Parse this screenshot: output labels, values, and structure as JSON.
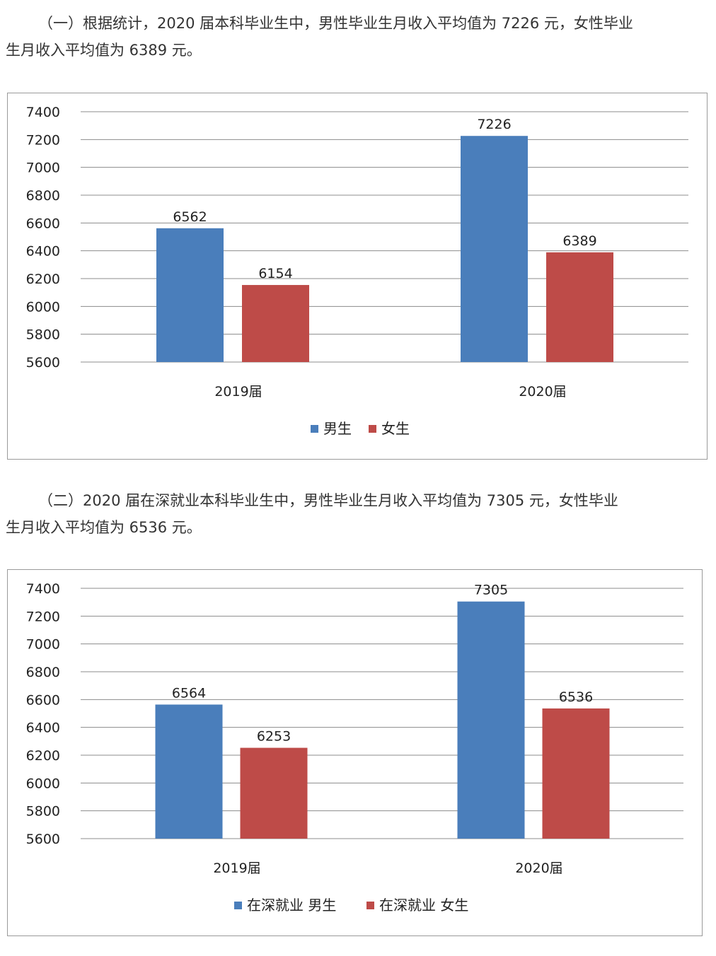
{
  "paragraphs": [
    {
      "line1": "（一）根据统计，2020 届本科毕业生中，男性毕业生月收入平均值为 7226 元，女性毕业",
      "line2": "生月收入平均值为 6389 元。"
    },
    {
      "line1": "（二）2020 届在深就业本科毕业生中，男性毕业生月收入平均值为 7305 元，女性毕业",
      "line2": "生月收入平均值为 6536 元。"
    }
  ],
  "colors": {
    "male": "#4a7ebb",
    "female": "#be4b48",
    "grid": "#8c8c8c"
  },
  "chart_data": [
    {
      "type": "bar",
      "title": "",
      "xlabel": "",
      "ylabel": "",
      "categories": [
        "2019届",
        "2020届"
      ],
      "ylim": [
        5600,
        7400
      ],
      "yticks": [
        5600,
        5800,
        6000,
        6200,
        6400,
        6600,
        6800,
        7000,
        7200,
        7400
      ],
      "grid": true,
      "legend_position": "bottom",
      "series": [
        {
          "name": "男生",
          "values": [
            6562,
            7226
          ]
        },
        {
          "name": "女生",
          "values": [
            6154,
            6389
          ]
        }
      ]
    },
    {
      "type": "bar",
      "title": "",
      "xlabel": "",
      "ylabel": "",
      "categories": [
        "2019届",
        "2020届"
      ],
      "ylim": [
        5600,
        7400
      ],
      "yticks": [
        5600,
        5800,
        6000,
        6200,
        6400,
        6600,
        6800,
        7000,
        7200,
        7400
      ],
      "grid": true,
      "legend_position": "bottom",
      "series": [
        {
          "name": "在深就业 男生",
          "values": [
            6564,
            7305
          ]
        },
        {
          "name": "在深就业 女生",
          "values": [
            6253,
            6536
          ]
        }
      ]
    }
  ]
}
